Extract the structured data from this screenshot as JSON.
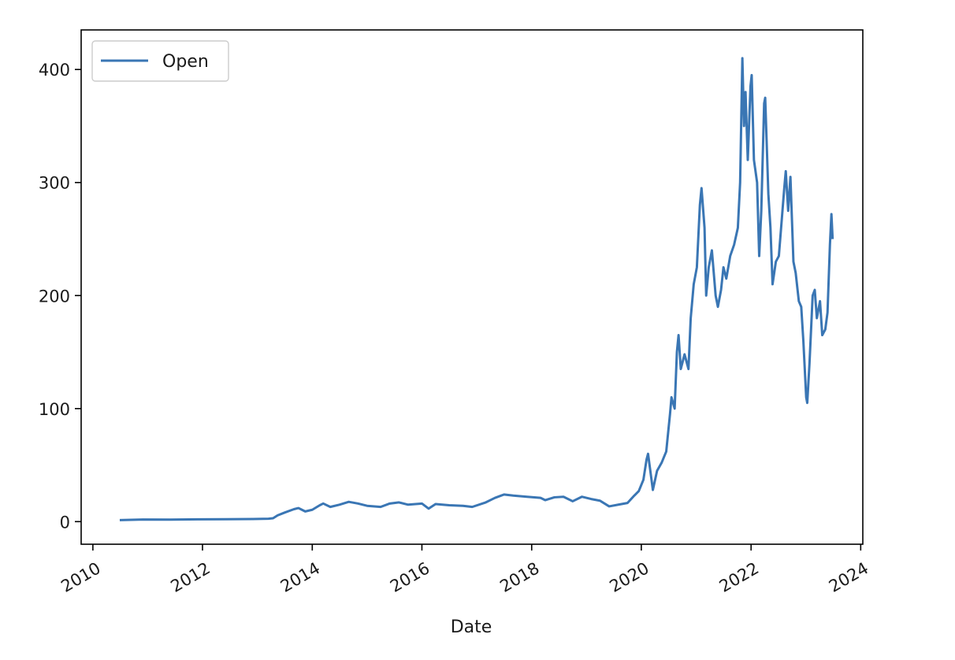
{
  "chart_data": {
    "type": "line",
    "title": "",
    "xlabel": "Date",
    "ylabel": "",
    "x_axis_type": "date",
    "xlim": [
      "2009-10-15",
      "2024-01-15"
    ],
    "ylim": [
      -20,
      435
    ],
    "xticks": [
      "2010-01-01",
      "2012-01-01",
      "2014-01-01",
      "2016-01-01",
      "2018-01-01",
      "2020-01-01",
      "2022-01-01",
      "2024-01-01"
    ],
    "xtick_labels": [
      "2010",
      "2012",
      "2014",
      "2016",
      "2018",
      "2020",
      "2022",
      "2024"
    ],
    "yticks": [
      0,
      100,
      200,
      300,
      400
    ],
    "ytick_labels": [
      "0",
      "100",
      "200",
      "300",
      "400"
    ],
    "grid": false,
    "legend": {
      "position": "top-left",
      "entries": [
        "Open"
      ]
    },
    "series": [
      {
        "name": "Open",
        "color": "#3a76b4",
        "points": [
          [
            "2010-06-29",
            1.3
          ],
          [
            "2010-12-01",
            1.9
          ],
          [
            "2011-06-01",
            1.8
          ],
          [
            "2011-12-01",
            2.0
          ],
          [
            "2012-06-01",
            2.1
          ],
          [
            "2012-12-01",
            2.3
          ],
          [
            "2013-03-15",
            2.6
          ],
          [
            "2013-04-15",
            3.0
          ],
          [
            "2013-05-15",
            5.5
          ],
          [
            "2013-07-01",
            8.0
          ],
          [
            "2013-09-01",
            11.0
          ],
          [
            "2013-10-01",
            12.0
          ],
          [
            "2013-11-15",
            9.0
          ],
          [
            "2014-01-01",
            10.5
          ],
          [
            "2014-02-20",
            14.5
          ],
          [
            "2014-03-15",
            16.0
          ],
          [
            "2014-05-01",
            13.0
          ],
          [
            "2014-07-01",
            15.0
          ],
          [
            "2014-09-01",
            17.5
          ],
          [
            "2014-11-01",
            16.0
          ],
          [
            "2015-01-01",
            14.0
          ],
          [
            "2015-04-01",
            13.0
          ],
          [
            "2015-06-01",
            16.0
          ],
          [
            "2015-08-01",
            17.0
          ],
          [
            "2015-10-01",
            15.0
          ],
          [
            "2016-01-01",
            16.0
          ],
          [
            "2016-02-15",
            11.5
          ],
          [
            "2016-04-01",
            15.5
          ],
          [
            "2016-07-01",
            14.5
          ],
          [
            "2016-10-01",
            14.0
          ],
          [
            "2016-12-01",
            13.0
          ],
          [
            "2017-03-01",
            17.0
          ],
          [
            "2017-05-01",
            21.0
          ],
          [
            "2017-07-01",
            24.0
          ],
          [
            "2017-09-01",
            23.0
          ],
          [
            "2017-12-01",
            22.0
          ],
          [
            "2018-03-01",
            21.0
          ],
          [
            "2018-04-01",
            19.0
          ],
          [
            "2018-06-01",
            21.5
          ],
          [
            "2018-08-01",
            22.0
          ],
          [
            "2018-10-01",
            18.0
          ],
          [
            "2018-12-01",
            22.0
          ],
          [
            "2019-02-01",
            20.0
          ],
          [
            "2019-04-01",
            18.5
          ],
          [
            "2019-06-01",
            13.5
          ],
          [
            "2019-08-01",
            15.0
          ],
          [
            "2019-10-01",
            16.5
          ],
          [
            "2019-11-15",
            23.0
          ],
          [
            "2019-12-15",
            27.0
          ],
          [
            "2020-01-15",
            37.0
          ],
          [
            "2020-02-05",
            55.0
          ],
          [
            "2020-02-15",
            60.0
          ],
          [
            "2020-03-18",
            28.0
          ],
          [
            "2020-04-15",
            45.0
          ],
          [
            "2020-05-15",
            52.0
          ],
          [
            "2020-06-15",
            62.0
          ],
          [
            "2020-07-10",
            95.0
          ],
          [
            "2020-07-20",
            110.0
          ],
          [
            "2020-08-10",
            100.0
          ],
          [
            "2020-08-25",
            150.0
          ],
          [
            "2020-09-05",
            165.0
          ],
          [
            "2020-09-20",
            135.0
          ],
          [
            "2020-10-15",
            148.0
          ],
          [
            "2020-11-10",
            135.0
          ],
          [
            "2020-11-25",
            180.0
          ],
          [
            "2020-12-15",
            210.0
          ],
          [
            "2021-01-05",
            225.0
          ],
          [
            "2021-01-25",
            280.0
          ],
          [
            "2021-02-05",
            295.0
          ],
          [
            "2021-02-25",
            260.0
          ],
          [
            "2021-03-08",
            200.0
          ],
          [
            "2021-03-25",
            225.0
          ],
          [
            "2021-04-15",
            240.0
          ],
          [
            "2021-05-10",
            200.0
          ],
          [
            "2021-05-25",
            190.0
          ],
          [
            "2021-06-15",
            205.0
          ],
          [
            "2021-07-01",
            225.0
          ],
          [
            "2021-07-20",
            215.0
          ],
          [
            "2021-08-15",
            235.0
          ],
          [
            "2021-09-10",
            245.0
          ],
          [
            "2021-10-05",
            260.0
          ],
          [
            "2021-10-20",
            300.0
          ],
          [
            "2021-11-04",
            410.0
          ],
          [
            "2021-11-15",
            350.0
          ],
          [
            "2021-11-25",
            380.0
          ],
          [
            "2021-12-10",
            320.0
          ],
          [
            "2021-12-28",
            385.0
          ],
          [
            "2022-01-05",
            395.0
          ],
          [
            "2022-01-20",
            320.0
          ],
          [
            "2022-02-10",
            300.0
          ],
          [
            "2022-02-24",
            235.0
          ],
          [
            "2022-03-10",
            275.0
          ],
          [
            "2022-03-29",
            370.0
          ],
          [
            "2022-04-05",
            375.0
          ],
          [
            "2022-04-26",
            290.0
          ],
          [
            "2022-05-10",
            260.0
          ],
          [
            "2022-05-24",
            210.0
          ],
          [
            "2022-06-15",
            230.0
          ],
          [
            "2022-07-05",
            235.0
          ],
          [
            "2022-07-20",
            260.0
          ],
          [
            "2022-08-10",
            295.0
          ],
          [
            "2022-08-20",
            310.0
          ],
          [
            "2022-09-05",
            275.0
          ],
          [
            "2022-09-20",
            305.0
          ],
          [
            "2022-10-10",
            230.0
          ],
          [
            "2022-10-25",
            220.0
          ],
          [
            "2022-11-15",
            195.0
          ],
          [
            "2022-12-01",
            190.0
          ],
          [
            "2022-12-15",
            160.0
          ],
          [
            "2023-01-03",
            110.0
          ],
          [
            "2023-01-10",
            105.0
          ],
          [
            "2023-01-25",
            140.0
          ],
          [
            "2023-02-15",
            200.0
          ],
          [
            "2023-03-01",
            205.0
          ],
          [
            "2023-03-15",
            180.0
          ],
          [
            "2023-04-05",
            195.0
          ],
          [
            "2023-04-20",
            165.0
          ],
          [
            "2023-05-10",
            170.0
          ],
          [
            "2023-05-25",
            185.0
          ],
          [
            "2023-06-10",
            245.0
          ],
          [
            "2023-06-20",
            272.0
          ],
          [
            "2023-06-28",
            250.0
          ]
        ]
      }
    ]
  }
}
